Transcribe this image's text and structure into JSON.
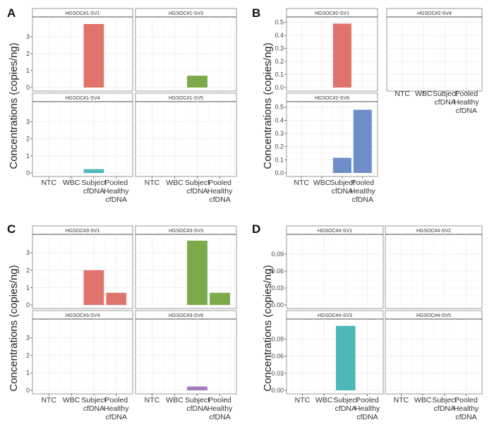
{
  "chart_data": {
    "type": "bar",
    "categories": [
      "NTC",
      "WBC",
      "Subject cfDNA",
      "Pooled Healthy cfDNA"
    ],
    "category_lines": [
      [
        "NTC"
      ],
      [
        "WBC"
      ],
      [
        "Subject",
        "cfDNA"
      ],
      [
        "Pooled",
        "Healthy",
        "cfDNA"
      ]
    ],
    "ylabel": "Concentrations (copies/ng)",
    "grid": true,
    "panels": [
      {
        "letter": "A",
        "ylim": [
          0,
          4
        ],
        "yticks": [
          0,
          1,
          2,
          3
        ],
        "ytick_labels": [
          "0",
          "1",
          "2",
          "3"
        ],
        "facets": [
          {
            "title": "HGSOC#1-SV1",
            "color": "#e0736b",
            "values": [
              0,
              0,
              3.75,
              0
            ]
          },
          {
            "title": "HGSOC#1-SV3",
            "color": "#7caa4a",
            "values": [
              0,
              0,
              0.7,
              0
            ]
          },
          {
            "title": "HGSOC#1-SV4",
            "color": "#4db8bb",
            "values": [
              0,
              0,
              0.22,
              0
            ]
          },
          {
            "title": "HGSOC#1-SV5",
            "color": "#9b7ac0",
            "values": [
              0,
              0,
              0,
              0
            ]
          }
        ]
      },
      {
        "letter": "B",
        "ylim": [
          0,
          0.52
        ],
        "yticks": [
          0,
          0.1,
          0.2,
          0.3,
          0.4,
          0.5
        ],
        "ytick_labels": [
          "0.0",
          "0.1",
          "0.2",
          "0.3",
          "0.4",
          "0.5"
        ],
        "facets": [
          {
            "title": "HGSOC#2-SV1",
            "color": "#e0736b",
            "values": [
              0,
              0,
              0.49,
              0
            ]
          },
          {
            "title": "HGSOC#2-SV4",
            "color": "#7caa4a",
            "values": [
              0,
              0,
              0,
              0
            ]
          },
          {
            "title": "HGSOC#2-SV6",
            "color": "#6f8dc8",
            "values": [
              0,
              0,
              0.115,
              0.48
            ]
          }
        ]
      },
      {
        "letter": "C",
        "ylim": [
          0,
          3.9
        ],
        "yticks": [
          0,
          1,
          2,
          3
        ],
        "ytick_labels": [
          "0",
          "1",
          "2",
          "3"
        ],
        "facets": [
          {
            "title": "HGSOC#3-SV1",
            "color": "#e0736b",
            "values": [
              0,
              0,
              2.0,
              0.7
            ]
          },
          {
            "title": "HGSOC#3-SV3",
            "color": "#7caa4a",
            "values": [
              0,
              0,
              3.7,
              0.7
            ]
          },
          {
            "title": "HGSOC#3-SV4",
            "color": "#4db8bb",
            "values": [
              0,
              0,
              0,
              0
            ]
          },
          {
            "title": "HGSOC#3-SV8",
            "color": "#a47ec4",
            "values": [
              0,
              0,
              0.22,
              0
            ]
          }
        ]
      },
      {
        "letter": "D",
        "ylim": [
          0,
          0.12
        ],
        "yticks": [
          0,
          0.03,
          0.06,
          0.09
        ],
        "ytick_labels": [
          "0.00",
          "0.03",
          "0.06",
          "0.09"
        ],
        "facets": [
          {
            "title": "HGSOC#4-SV1",
            "color": "#e0736b",
            "values": [
              0,
              0,
              0,
              0
            ]
          },
          {
            "title": "HGSOC#4-SV2",
            "color": "#7caa4a",
            "values": [
              0,
              0,
              0,
              0
            ]
          },
          {
            "title": "HGSOC#4-SV3",
            "color": "#4db8bb",
            "values": [
              0,
              0,
              0.113,
              0
            ]
          },
          {
            "title": "HGSOC#4-SV5",
            "color": "#9b7ac0",
            "values": [
              0,
              0,
              0,
              0
            ]
          }
        ]
      }
    ]
  }
}
